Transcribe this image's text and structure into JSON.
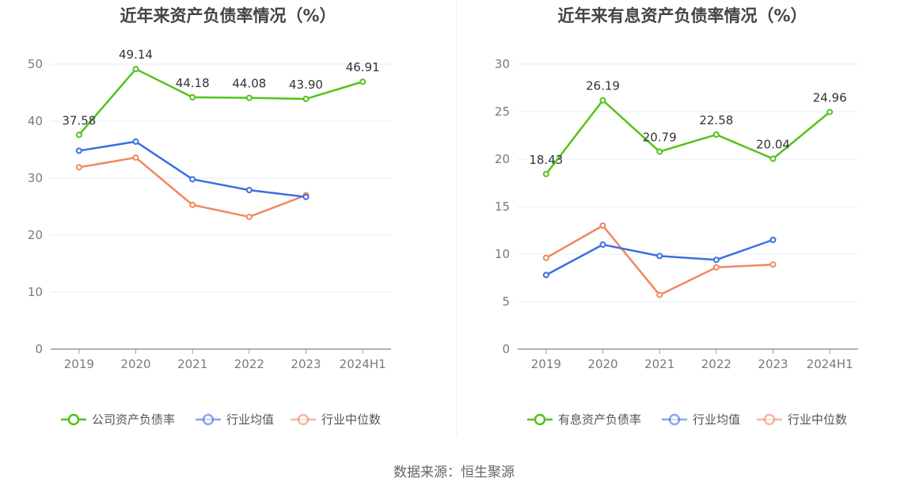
{
  "source_text": "数据来源：恒生聚源",
  "colors": {
    "company": "#52c41a",
    "industry_avg": "#3b6fe0",
    "industry_median": "#f2875e",
    "axis": "#999999",
    "grid": "#e6ebf5"
  },
  "chart_data": [
    {
      "type": "line",
      "title": "近年来资产负债率情况（%）",
      "categories": [
        "2019",
        "2020",
        "2021",
        "2022",
        "2023",
        "2024H1"
      ],
      "ylim": [
        0,
        50
      ],
      "yticks": [
        0,
        10,
        20,
        30,
        40,
        50
      ],
      "grid": true,
      "legend_position": "bottom",
      "series": [
        {
          "name": "公司资产负债率",
          "color_key": "company",
          "values": [
            37.58,
            49.14,
            44.18,
            44.08,
            43.9,
            46.91
          ],
          "labels": [
            "37.58",
            "49.14",
            "44.18",
            "44.08",
            "43.90",
            "46.91"
          ]
        },
        {
          "name": "行业均值",
          "color_key": "industry_avg",
          "values": [
            34.8,
            36.4,
            29.8,
            27.9,
            26.7,
            null
          ]
        },
        {
          "name": "行业中位数",
          "color_key": "industry_median",
          "values": [
            31.9,
            33.6,
            25.3,
            23.2,
            27.0,
            null
          ]
        }
      ]
    },
    {
      "type": "line",
      "title": "近年来有息资产负债率情况（%）",
      "categories": [
        "2019",
        "2020",
        "2021",
        "2022",
        "2023",
        "2024H1"
      ],
      "ylim": [
        0,
        30
      ],
      "yticks": [
        0,
        5,
        10,
        15,
        20,
        25,
        30
      ],
      "grid": true,
      "legend_position": "bottom",
      "series": [
        {
          "name": "有息资产负债率",
          "color_key": "company",
          "values": [
            18.43,
            26.19,
            20.79,
            22.58,
            20.04,
            24.96
          ],
          "labels": [
            "18.43",
            "26.19",
            "20.79",
            "22.58",
            "20.04",
            "24.96"
          ]
        },
        {
          "name": "行业均值",
          "color_key": "industry_avg",
          "values": [
            7.8,
            11.0,
            9.8,
            9.4,
            11.5,
            null
          ]
        },
        {
          "name": "行业中位数",
          "color_key": "industry_median",
          "values": [
            9.6,
            13.0,
            5.7,
            8.6,
            8.9,
            null
          ]
        }
      ]
    }
  ]
}
